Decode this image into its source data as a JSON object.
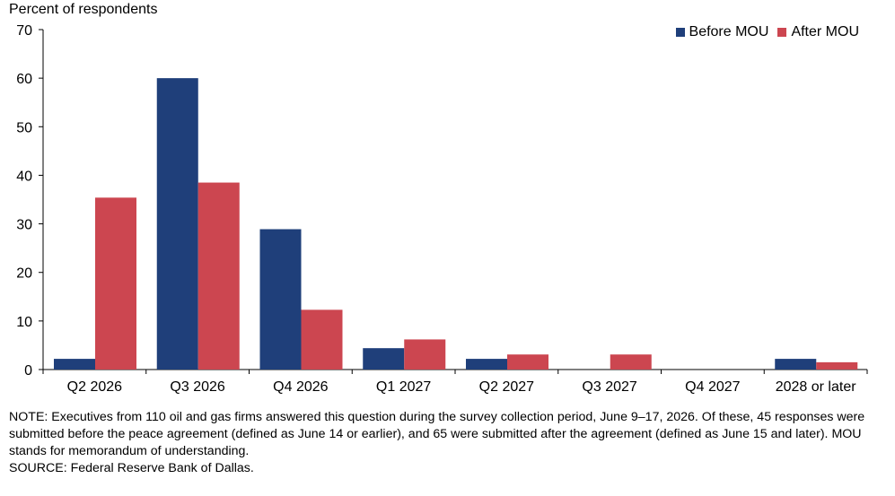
{
  "chart_data": {
    "type": "bar",
    "ylabel": "Percent of respondents",
    "ylim": [
      0,
      70
    ],
    "yticks": [
      0,
      10,
      20,
      30,
      40,
      50,
      60,
      70
    ],
    "categories": [
      "Q2 2026",
      "Q3 2026",
      "Q4 2026",
      "Q1 2027",
      "Q2 2027",
      "Q3 2027",
      "Q4 2027",
      "2028 or later"
    ],
    "series": [
      {
        "name": "Before MOU",
        "color": "#1f3f7a",
        "values": [
          2.2,
          60.0,
          28.9,
          4.4,
          2.2,
          0,
          0,
          2.2
        ]
      },
      {
        "name": "After MOU",
        "color": "#cc4650",
        "values": [
          35.4,
          38.5,
          12.3,
          6.2,
          3.1,
          3.1,
          0,
          1.5
        ]
      }
    ],
    "legend_position": "top-right",
    "grid": false
  },
  "notes": {
    "note": "NOTE: Executives from 110 oil and gas firms answered this question during the survey collection period, June 9–17, 2026. Of these, 45 responses were submitted before the peace agreement (defined as June 14 or earlier), and 65 were submitted after the agreement (defined as June 15 and later). MOU stands for memorandum of understanding.",
    "source": "SOURCE: Federal Reserve Bank of Dallas."
  }
}
